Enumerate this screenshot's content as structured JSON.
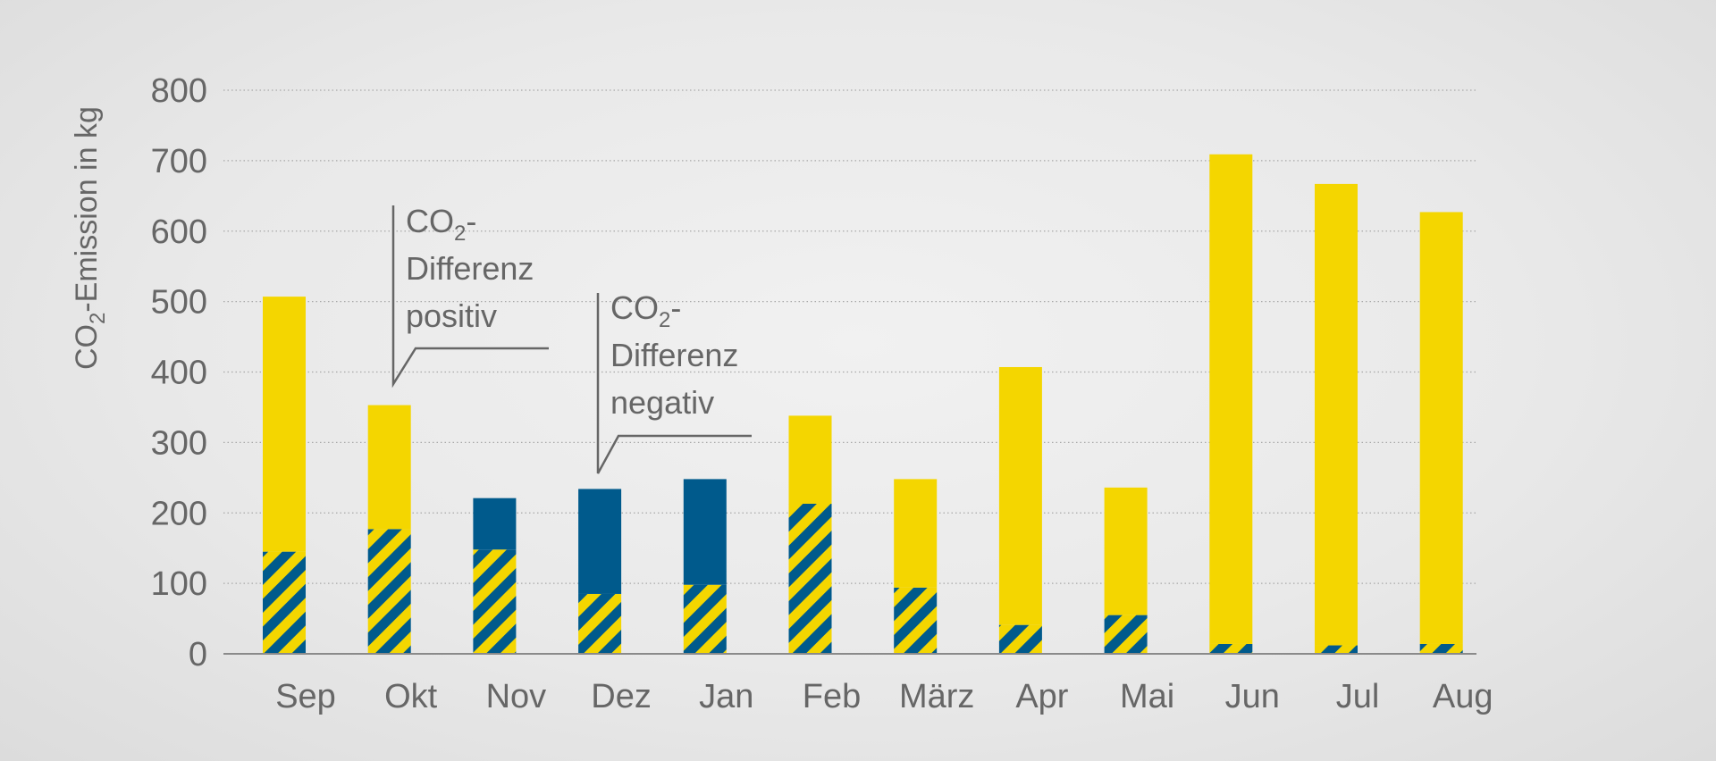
{
  "chart_data": {
    "type": "bar",
    "ylabel": {
      "prefix": "CO",
      "sub": "2",
      "suffix": "-Emission in kg"
    },
    "ylim": [
      0,
      800
    ],
    "yticks": [
      0,
      100,
      200,
      300,
      400,
      500,
      600,
      700,
      800
    ],
    "grid": "horizontal-dotted",
    "categories": [
      "Sep",
      "Okt",
      "Nov",
      "Dez",
      "Jan",
      "Feb",
      "März",
      "Apr",
      "Mai",
      "Jun",
      "Jul",
      "Aug"
    ],
    "series": [
      {
        "key": "base",
        "pattern": "hatched-yellow-blue",
        "values": [
          145,
          177,
          148,
          85,
          98,
          213,
          94,
          41,
          55,
          14,
          12,
          14
        ]
      },
      {
        "key": "positive",
        "color": "#f4d600",
        "values": [
          362,
          176,
          0,
          0,
          0,
          125,
          154,
          366,
          181,
          695,
          655,
          613
        ]
      },
      {
        "key": "negative",
        "color": "#005a8c",
        "values": [
          0,
          0,
          73,
          149,
          150,
          0,
          0,
          0,
          0,
          0,
          0,
          0
        ]
      }
    ],
    "annotations": [
      {
        "lines": [
          {
            "prefix": "CO",
            "sub": "2",
            "suffix": "-"
          },
          {
            "text": "Differenz"
          },
          {
            "text": "positiv"
          }
        ],
        "category": "Okt"
      },
      {
        "lines": [
          {
            "prefix": "CO",
            "sub": "2",
            "suffix": "-"
          },
          {
            "text": "Differenz"
          },
          {
            "text": "negativ"
          }
        ],
        "category": "Dez"
      }
    ],
    "colors": {
      "yellow": "#f4d600",
      "blue": "#005a8c",
      "axis": "#8a8a8a",
      "text": "#666666"
    }
  }
}
